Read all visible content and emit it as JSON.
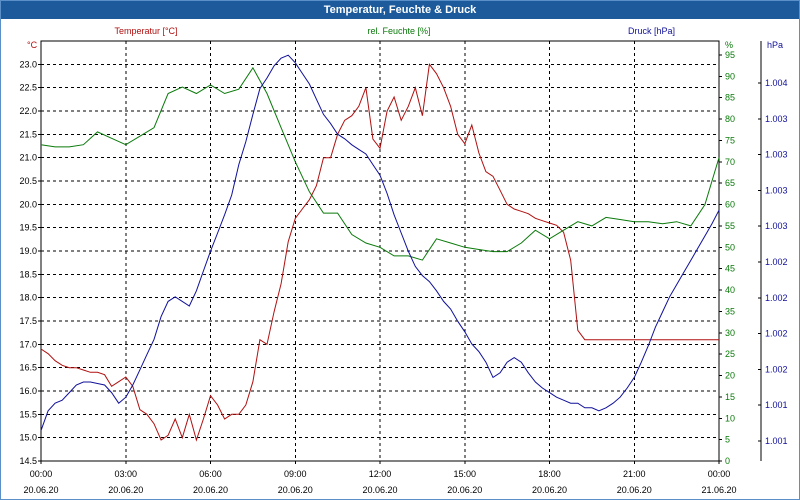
{
  "window": {
    "title": "Temperatur, Feuchte & Druck"
  },
  "colors": {
    "temperature": "#b01010",
    "humidity": "#0a7a0a",
    "pressure": "#10109a",
    "grid": "#000000",
    "titlebar": "#1c5a9c"
  },
  "chart_data": {
    "type": "line",
    "grid": true,
    "x_labels": [
      {
        "time": "00:00",
        "date": "20.06.20"
      },
      {
        "time": "03:00",
        "date": "20.06.20"
      },
      {
        "time": "06:00",
        "date": "20.06.20"
      },
      {
        "time": "09:00",
        "date": "20.06.20"
      },
      {
        "time": "12:00",
        "date": "20.06.20"
      },
      {
        "time": "15:00",
        "date": "20.06.20"
      },
      {
        "time": "18:00",
        "date": "20.06.20"
      },
      {
        "time": "21:00",
        "date": "20.06.20"
      },
      {
        "time": "00:00",
        "date": "21.06.20"
      }
    ],
    "x_range_hours": [
      0,
      24
    ],
    "axes": {
      "left": {
        "unit": "°C",
        "ylim": [
          14.5,
          23.5
        ],
        "ticks": [
          "23.0",
          "22.5",
          "22.0",
          "21.5",
          "21.0",
          "20.5",
          "20.0",
          "19.5",
          "19.0",
          "18.5",
          "18.0",
          "17.5",
          "17.0",
          "16.5",
          "16.0",
          "15.5",
          "15.0",
          "14.5"
        ]
      },
      "middle": {
        "unit": "%",
        "ylim": [
          0,
          100
        ],
        "ticks": [
          "95",
          "90",
          "85",
          "80",
          "75",
          "70",
          "65",
          "60",
          "55",
          "50",
          "45",
          "40",
          "35",
          "30",
          "25",
          "20",
          "15",
          "10",
          "5",
          "0"
        ]
      },
      "right": {
        "unit": "hPa",
        "ticks": [
          "1.004",
          "1.003",
          "1.003",
          "1.003",
          "1.003",
          "1.002",
          "1.002",
          "1.002",
          "1.002",
          "1.001",
          "1.001"
        ]
      }
    },
    "series": [
      {
        "name": "Temperatur [°C]",
        "axis": "left",
        "x": [
          0,
          0.25,
          0.5,
          0.75,
          1,
          1.25,
          1.5,
          1.75,
          2,
          2.25,
          2.5,
          2.75,
          3,
          3.25,
          3.5,
          3.75,
          4,
          4.25,
          4.5,
          4.75,
          5,
          5.25,
          5.5,
          5.75,
          6,
          6.25,
          6.5,
          6.75,
          7,
          7.25,
          7.5,
          7.75,
          8,
          8.25,
          8.5,
          8.75,
          9,
          9.25,
          9.5,
          9.75,
          10,
          10.25,
          10.5,
          10.75,
          11,
          11.25,
          11.5,
          11.75,
          12,
          12.25,
          12.5,
          12.75,
          13,
          13.25,
          13.5,
          13.75,
          14,
          14.25,
          14.5,
          14.75,
          15,
          15.25,
          15.5,
          15.75,
          16,
          16.25,
          16.5,
          16.75,
          17,
          17.25,
          17.5,
          17.75,
          18,
          18.25,
          18.5,
          18.75,
          19,
          19.25,
          19.5,
          19.75,
          20,
          20.25,
          20.5,
          20.75,
          21,
          21.25,
          21.5,
          21.75,
          22,
          22.25,
          22.5,
          22.75,
          23,
          23.25,
          23.5,
          23.75,
          24
        ],
        "values": [
          16.9,
          16.8,
          16.65,
          16.55,
          16.5,
          16.5,
          16.45,
          16.4,
          16.4,
          16.35,
          16.1,
          16.2,
          16.3,
          16.1,
          15.6,
          15.5,
          15.3,
          14.95,
          15.05,
          15.4,
          15.0,
          15.5,
          14.95,
          15.4,
          15.9,
          15.7,
          15.4,
          15.5,
          15.5,
          15.7,
          16.2,
          17.1,
          17.0,
          17.7,
          18.3,
          19.2,
          19.7,
          19.9,
          20.1,
          20.4,
          21.0,
          21.0,
          21.5,
          21.8,
          21.9,
          22.1,
          22.5,
          21.4,
          21.2,
          22.0,
          22.3,
          21.8,
          22.1,
          22.5,
          21.9,
          23.0,
          22.8,
          22.5,
          22.1,
          21.5,
          21.3,
          21.7,
          21.1,
          20.7,
          20.6,
          20.3,
          20.0,
          19.9,
          19.85,
          19.8,
          19.7,
          19.65,
          19.6,
          19.55,
          19.4,
          18.8,
          17.3,
          17.1,
          17.1,
          17.1,
          17.1,
          17.1,
          17.1,
          17.1,
          17.1,
          17.1,
          17.1,
          17.1,
          17.1,
          17.1,
          17.1,
          17.1,
          17.1,
          17.1,
          17.1,
          17.1,
          17.1
        ]
      },
      {
        "name": "rel. Feuchte [%]",
        "axis": "middle",
        "x": [
          0,
          0.5,
          1,
          1.5,
          2,
          2.5,
          3,
          3.5,
          4,
          4.5,
          5,
          5.5,
          6,
          6.5,
          7,
          7.5,
          8,
          8.5,
          9,
          9.5,
          10,
          10.5,
          11,
          11.5,
          12,
          12.5,
          13,
          13.5,
          14,
          14.5,
          15,
          15.5,
          16,
          16.5,
          17,
          17.5,
          18,
          18.5,
          19,
          19.5,
          20,
          20.5,
          21,
          21.5,
          22,
          22.5,
          23,
          23.5,
          24
        ],
        "values": [
          74,
          73.5,
          73.5,
          74,
          77,
          75.5,
          74,
          76,
          78,
          86,
          87.5,
          86,
          88,
          86,
          87,
          92,
          86,
          78,
          70,
          63,
          58,
          58,
          53,
          51,
          50,
          48,
          48,
          47,
          52,
          51,
          50,
          49.5,
          49,
          49,
          51,
          54,
          52,
          54,
          56,
          55,
          57,
          56.5,
          56,
          56,
          55.5,
          56,
          55,
          60,
          71
        ]
      },
      {
        "name": "Druck [hPa]",
        "axis": "pressure",
        "x": [
          0,
          0.25,
          0.5,
          0.75,
          1,
          1.25,
          1.5,
          1.75,
          2,
          2.25,
          2.5,
          2.75,
          3,
          3.25,
          3.5,
          3.75,
          4,
          4.25,
          4.5,
          4.75,
          5,
          5.25,
          5.5,
          5.75,
          6,
          6.25,
          6.5,
          6.75,
          7,
          7.25,
          7.5,
          7.75,
          8,
          8.25,
          8.5,
          8.75,
          9,
          9.25,
          9.5,
          9.75,
          10,
          10.25,
          10.5,
          10.75,
          11,
          11.25,
          11.5,
          11.75,
          12,
          12.25,
          12.5,
          12.75,
          13,
          13.25,
          13.5,
          13.75,
          14,
          14.25,
          14.5,
          14.75,
          15,
          15.25,
          15.5,
          15.75,
          16,
          16.25,
          16.5,
          16.75,
          17,
          17.25,
          17.5,
          17.75,
          18,
          18.25,
          18.5,
          18.75,
          19,
          19.25,
          19.5,
          19.75,
          20,
          20.25,
          20.5,
          20.75,
          21,
          21.25,
          21.5,
          21.75,
          22,
          22.25,
          22.5,
          22.75,
          23,
          23.25,
          23.5,
          23.75,
          24
        ],
        "values": [
          1.0013,
          1.00143,
          1.00148,
          1.0015,
          1.00155,
          1.0016,
          1.00162,
          1.00162,
          1.00161,
          1.0016,
          1.00155,
          1.00148,
          1.00152,
          1.0016,
          1.0017,
          1.0018,
          1.0019,
          1.00205,
          1.00215,
          1.00218,
          1.00215,
          1.00212,
          1.00222,
          1.00235,
          1.00248,
          1.0026,
          1.00272,
          1.00285,
          1.00305,
          1.0032,
          1.00338,
          1.00355,
          1.00362,
          1.0037,
          1.00375,
          1.00377,
          1.00372,
          1.00365,
          1.00358,
          1.00348,
          1.00338,
          1.00332,
          1.00325,
          1.00322,
          1.00318,
          1.00315,
          1.00312,
          1.00305,
          1.00298,
          1.00286,
          1.00272,
          1.0026,
          1.00248,
          1.00238,
          1.00232,
          1.00228,
          1.00222,
          1.00215,
          1.0021,
          1.00202,
          1.00195,
          1.00187,
          1.00182,
          1.00175,
          1.00165,
          1.00168,
          1.00175,
          1.00178,
          1.00175,
          1.00168,
          1.00162,
          1.00158,
          1.00155,
          1.00152,
          1.0015,
          1.00148,
          1.00148,
          1.00145,
          1.00145,
          1.00143,
          1.00145,
          1.00148,
          1.00152,
          1.00158,
          1.00165,
          1.00175,
          1.00186,
          1.00198,
          1.00208,
          1.00218,
          1.00226,
          1.00234,
          1.00242,
          1.0025,
          1.00258,
          1.00266,
          1.00275
        ]
      }
    ]
  }
}
